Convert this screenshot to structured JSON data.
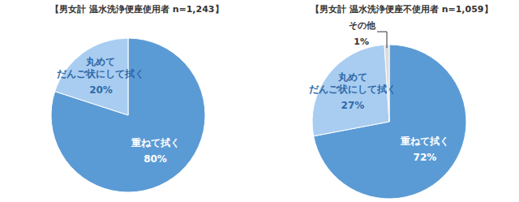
{
  "chart_data": [
    {
      "type": "pie",
      "title": "【男女計 温水洗浄便座使用者 n=1,243】",
      "categories": [
        "重ねて拭く",
        "丸めて\nだんご状にして拭く"
      ],
      "values": [
        80,
        20
      ],
      "value_labels": [
        "80%",
        "20%"
      ],
      "colors": [
        "#5b9bd5",
        "#a9cdf1"
      ],
      "data_labels": true
    },
    {
      "type": "pie",
      "title": "【男女計 温水洗浄便座不使用者 n=1,059】",
      "categories": [
        "重ねて拭く",
        "丸めて\nだんご状にして拭く",
        "その他"
      ],
      "values": [
        72,
        27,
        1
      ],
      "value_labels": [
        "72%",
        "27%",
        "1%"
      ],
      "colors": [
        "#5b9bd5",
        "#a9cdf1",
        "#dcdcdc"
      ],
      "data_labels": true
    }
  ]
}
